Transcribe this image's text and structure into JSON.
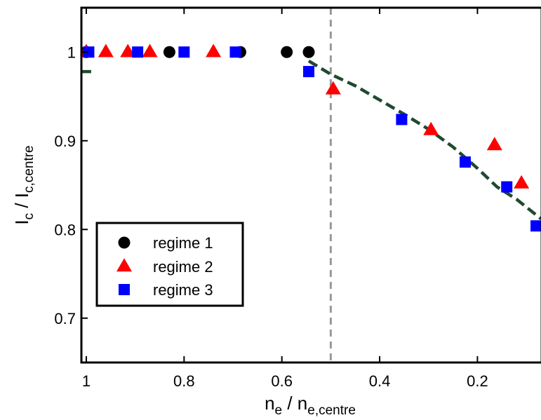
{
  "chart_data": {
    "type": "scatter",
    "title": "",
    "xlabel": {
      "main": "n",
      "sub1": "e",
      "sep": " / n",
      "sub2": "e,centre"
    },
    "ylabel": {
      "main": "I",
      "sub1": "c",
      "sep": " / I",
      "sub2": "c,centre"
    },
    "xlim": [
      1.01,
      0.07
    ],
    "ylim": [
      0.65,
      1.05
    ],
    "x_reversed": true,
    "xticks": [
      1,
      0.8,
      0.6,
      0.4,
      0.2
    ],
    "xtick_labels": [
      "1",
      "0.8",
      "0.6",
      "0.4",
      "0.2"
    ],
    "yticks": [
      0.7,
      0.8,
      0.9,
      1.0
    ],
    "ytick_labels": [
      "0.7",
      "0.8",
      "0.9",
      "1"
    ],
    "grid": false,
    "legend_position": "bottom-left",
    "series": [
      {
        "name": "regime 1",
        "marker": "circle",
        "color": "#000000",
        "x": [
          1.0,
          0.83,
          0.685,
          0.59,
          0.545
        ],
        "y": [
          1.0,
          1.0,
          1.0,
          1.0,
          1.0
        ]
      },
      {
        "name": "regime 2",
        "marker": "triangle",
        "color": "#ff0000",
        "x": [
          1.0,
          0.96,
          0.915,
          0.87,
          0.74,
          0.495,
          0.295,
          0.165,
          0.11
        ],
        "y": [
          1.0,
          1.0,
          1.0,
          1.0,
          1.0,
          0.958,
          0.912,
          0.895,
          0.852
        ]
      },
      {
        "name": "regime 3",
        "marker": "square",
        "color": "#0000ff",
        "x": [
          0.995,
          0.895,
          0.8,
          0.695,
          0.545,
          0.355,
          0.225,
          0.14,
          0.08
        ],
        "y": [
          1.0,
          1.0,
          1.0,
          1.0,
          0.978,
          0.924,
          0.876,
          0.848,
          0.804
        ]
      }
    ],
    "fit_line": {
      "color": "#1f4a2f",
      "style": "dashed",
      "segments": [
        [
          [
            1.01,
            0.978
          ],
          [
            0.99,
            0.978
          ]
        ],
        [
          [
            0.545,
            0.99
          ],
          [
            0.5,
            0.975
          ],
          [
            0.45,
            0.962
          ],
          [
            0.4,
            0.946
          ],
          [
            0.35,
            0.93
          ],
          [
            0.3,
            0.913
          ],
          [
            0.25,
            0.893
          ],
          [
            0.2,
            0.869
          ],
          [
            0.16,
            0.848
          ],
          [
            0.12,
            0.834
          ],
          [
            0.07,
            0.812
          ]
        ]
      ]
    },
    "reference_line": {
      "x": 0.5,
      "color": "#999999",
      "style": "dashed"
    }
  }
}
